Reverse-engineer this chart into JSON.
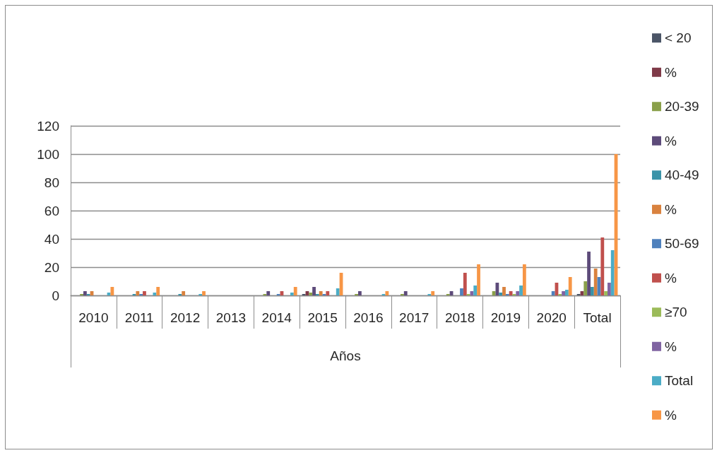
{
  "chart_data": {
    "type": "bar",
    "xlabel": "Años",
    "categories": [
      "2010",
      "2011",
      "2012",
      "2013",
      "2014",
      "2015",
      "2016",
      "2017",
      "2018",
      "2019",
      "2020",
      "Total"
    ],
    "series": [
      {
        "name": "< 20",
        "color": "#4b5567",
        "values": [
          null,
          null,
          null,
          null,
          null,
          1,
          null,
          null,
          null,
          null,
          null,
          1
        ]
      },
      {
        "name": "%",
        "color": "#7f3a48",
        "values": [
          null,
          null,
          null,
          null,
          null,
          3,
          null,
          null,
          null,
          null,
          null,
          3
        ]
      },
      {
        "name": "20-39",
        "color": "#8aa04a",
        "values": [
          1,
          null,
          null,
          null,
          1,
          2,
          1,
          1,
          1,
          3,
          null,
          10
        ]
      },
      {
        "name": "%",
        "color": "#5d4b7a",
        "values": [
          3,
          null,
          null,
          null,
          3,
          6,
          3,
          3,
          3,
          9,
          null,
          31
        ]
      },
      {
        "name": "40-49",
        "color": "#3a93a8",
        "values": [
          1,
          1,
          1,
          null,
          null,
          1,
          null,
          null,
          null,
          2,
          null,
          6
        ]
      },
      {
        "name": "%",
        "color": "#d9823e",
        "values": [
          3,
          3,
          3,
          null,
          null,
          3,
          null,
          null,
          null,
          6,
          null,
          19
        ]
      },
      {
        "name": "50-69",
        "color": "#4f81bd",
        "values": [
          null,
          1,
          null,
          null,
          1,
          1,
          null,
          null,
          5,
          1,
          3,
          13
        ]
      },
      {
        "name": "%",
        "color": "#c0504d",
        "values": [
          null,
          3,
          null,
          null,
          3,
          3,
          null,
          null,
          16,
          3,
          9,
          41
        ]
      },
      {
        "name": "≥70",
        "color": "#9bbb59",
        "values": [
          null,
          null,
          null,
          null,
          null,
          null,
          null,
          null,
          1,
          1,
          1,
          3
        ]
      },
      {
        "name": "%",
        "color": "#8064a2",
        "values": [
          null,
          null,
          null,
          null,
          null,
          null,
          null,
          null,
          3,
          3,
          3,
          9
        ]
      },
      {
        "name": "Total",
        "color": "#4bacc6",
        "values": [
          2,
          2,
          1,
          null,
          2,
          5,
          1,
          1,
          7,
          7,
          4,
          32
        ]
      },
      {
        "name": "%",
        "color": "#f79646",
        "values": [
          6,
          6,
          3,
          null,
          6,
          16,
          3,
          3,
          22,
          22,
          13,
          100
        ]
      }
    ],
    "ylim": [
      0,
      120
    ],
    "yticks": [
      0,
      20,
      40,
      60,
      80,
      100,
      120
    ],
    "grid": "y",
    "legend": "right"
  }
}
